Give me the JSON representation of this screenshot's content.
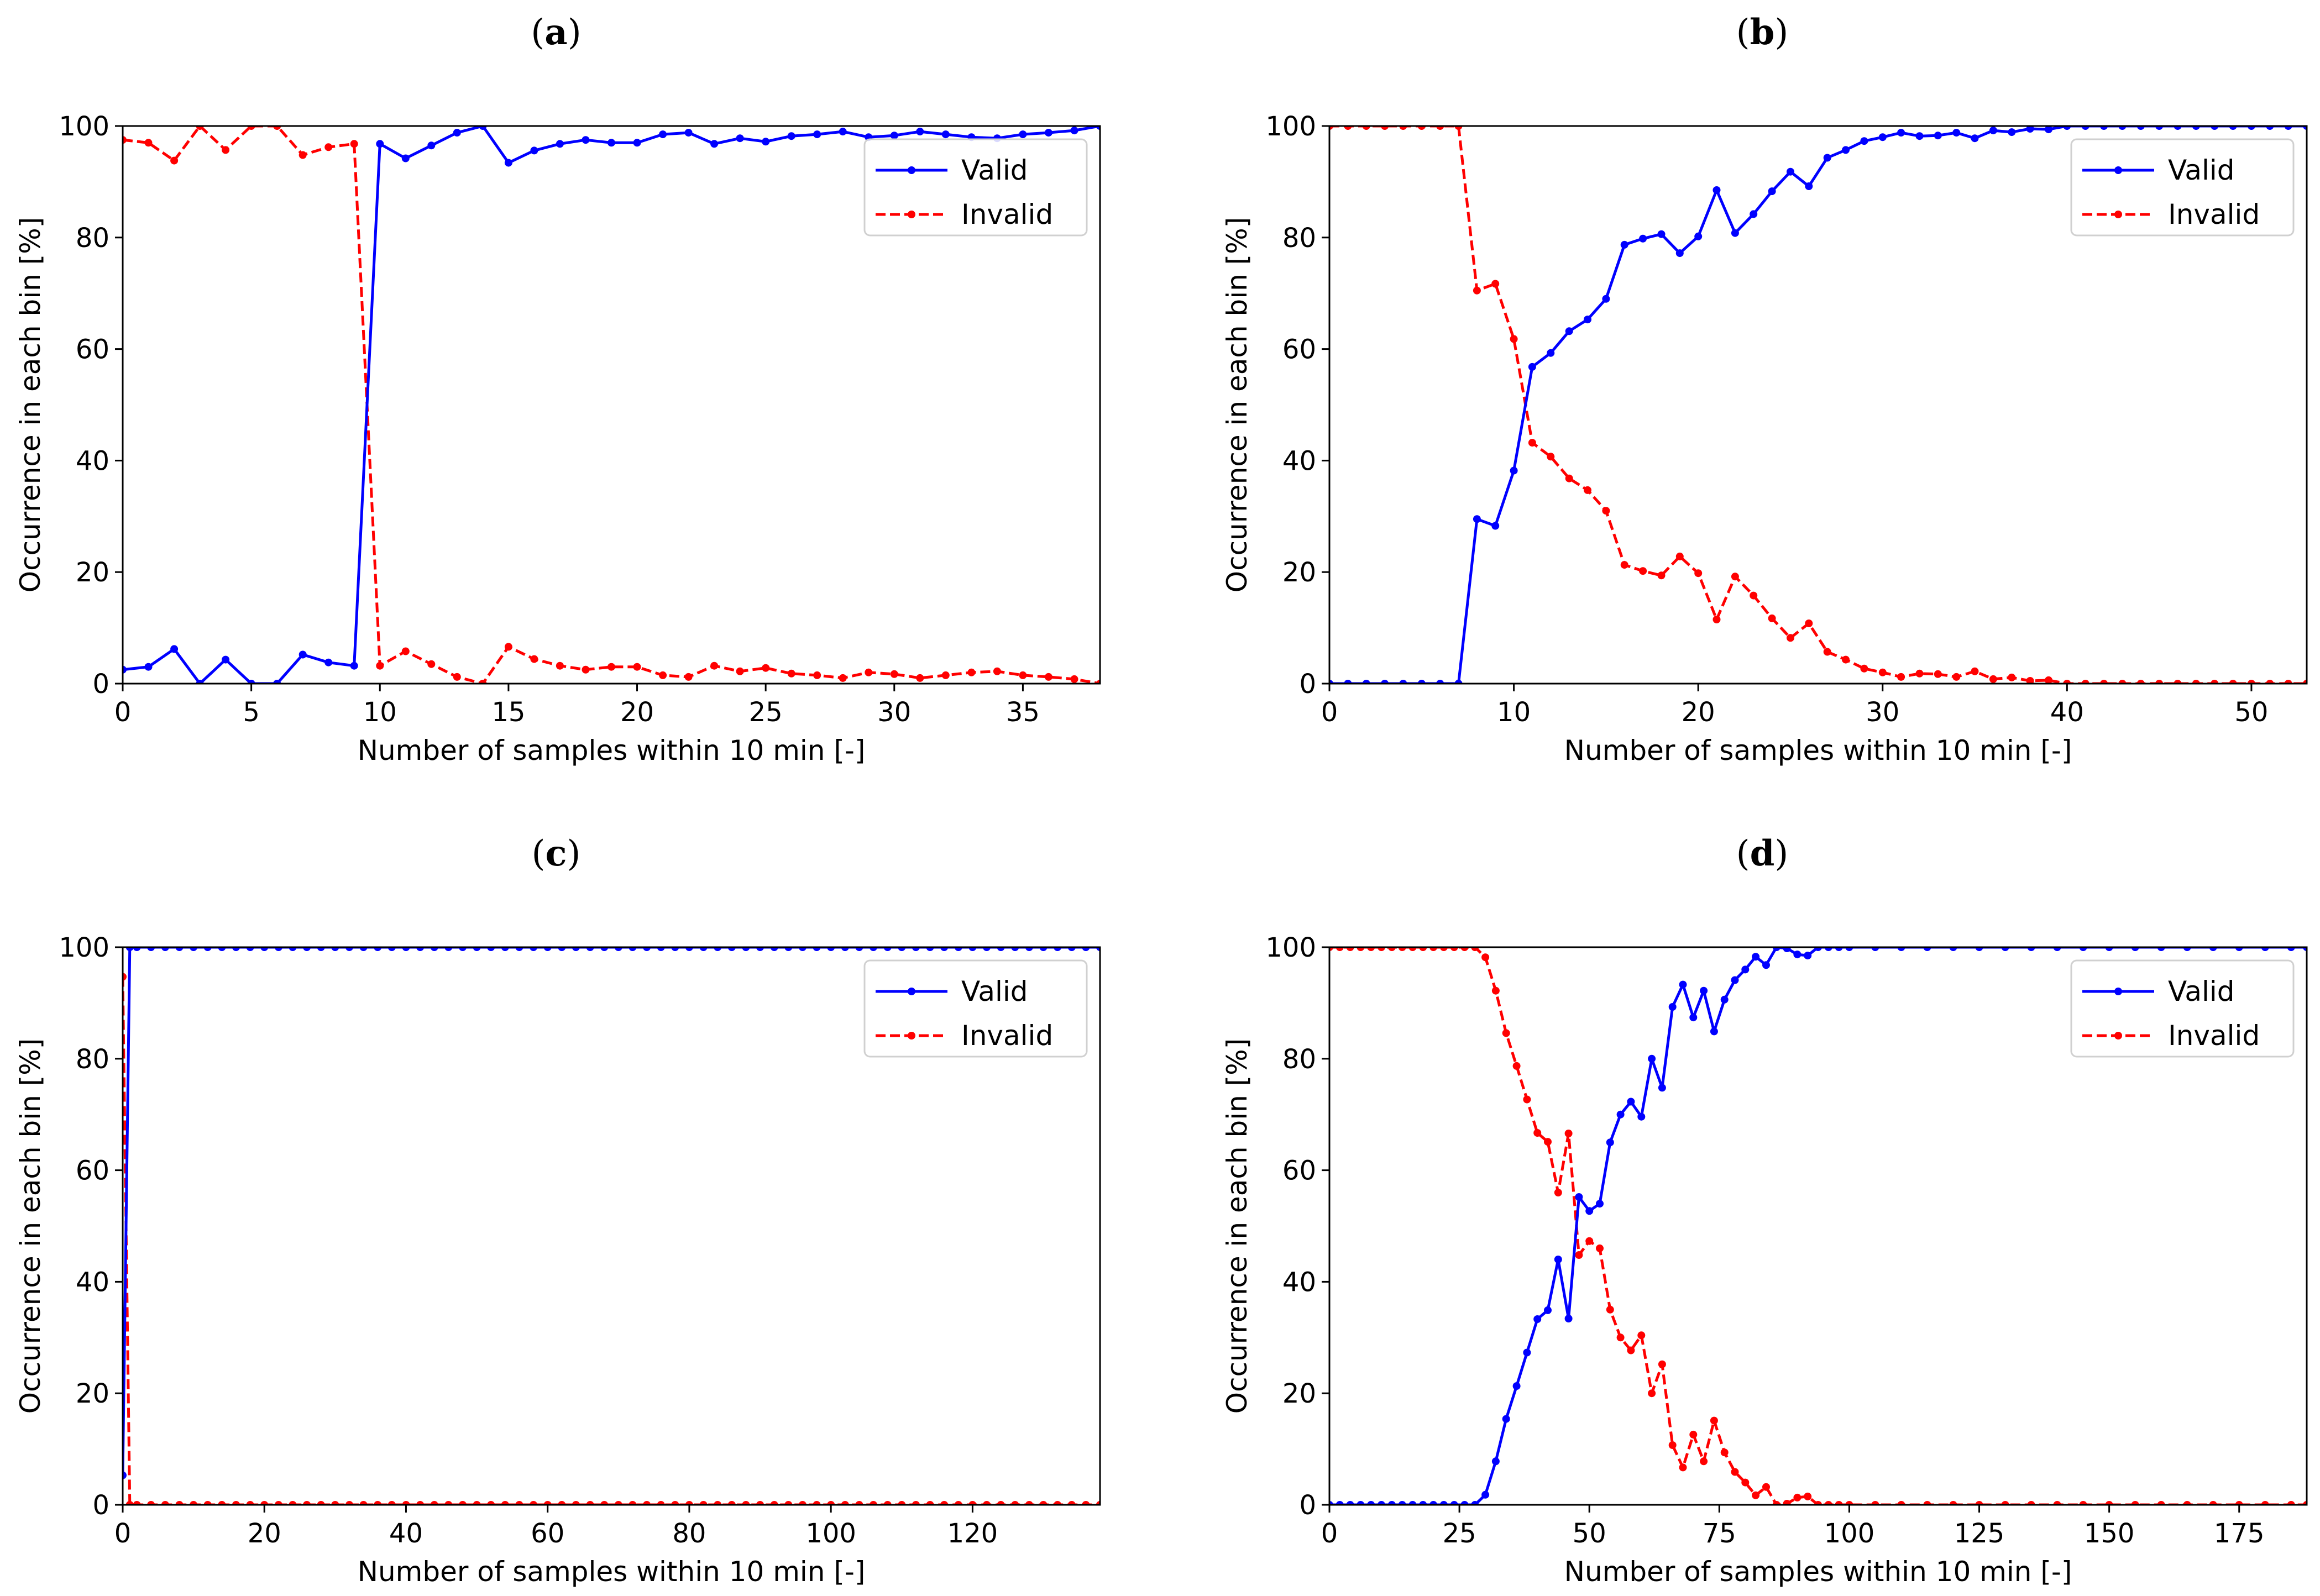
{
  "panels": [
    {
      "label": "a",
      "label_prefix": "(",
      "label_suffix": ")"
    },
    {
      "label": "b",
      "label_prefix": "(",
      "label_suffix": ")"
    },
    {
      "label": "c",
      "label_prefix": "(",
      "label_suffix": ")"
    },
    {
      "label": "d",
      "label_prefix": "(",
      "label_suffix": ")"
    }
  ],
  "chart_data": [
    {
      "type": "line",
      "panel": "a",
      "xlabel": "Number of samples within 10 min [-]",
      "ylabel": "Occurrence in each bin [%]",
      "xlim": [
        0,
        38
      ],
      "ylim": [
        0,
        100
      ],
      "xticks": [
        0,
        5,
        10,
        15,
        20,
        25,
        30,
        35
      ],
      "yticks": [
        0,
        20,
        40,
        60,
        80,
        100
      ],
      "legend": {
        "position": "top-right",
        "entries": [
          "Valid",
          "Invalid"
        ]
      },
      "x": [
        0,
        1,
        2,
        3,
        4,
        5,
        6,
        7,
        8,
        9,
        10,
        11,
        12,
        13,
        14,
        15,
        16,
        17,
        18,
        19,
        20,
        21,
        22,
        23,
        24,
        25,
        26,
        27,
        28,
        29,
        30,
        31,
        32,
        33,
        34,
        35,
        36,
        37,
        38
      ],
      "series": [
        {
          "name": "Valid",
          "color": "#0000ff",
          "style": "solid",
          "values": [
            2.5,
            3,
            6.2,
            0,
            4.3,
            0,
            0,
            5.2,
            3.8,
            3.2,
            96.8,
            94.2,
            96.5,
            98.8,
            100,
            93.4,
            95.6,
            96.8,
            97.5,
            97.0,
            97.0,
            98.5,
            98.8,
            96.8,
            97.8,
            97.2,
            98.2,
            98.5,
            99.0,
            98.0,
            98.3,
            99.0,
            98.5,
            98.0,
            97.8,
            98.5,
            98.8,
            99.2,
            100
          ]
        },
        {
          "name": "Invalid",
          "color": "#ff0000",
          "style": "dashed",
          "values": [
            97.5,
            97,
            93.8,
            100,
            95.7,
            100,
            100,
            94.8,
            96.2,
            96.8,
            3.2,
            5.8,
            3.5,
            1.2,
            0,
            6.6,
            4.4,
            3.2,
            2.5,
            3.0,
            3.0,
            1.5,
            1.2,
            3.2,
            2.2,
            2.8,
            1.8,
            1.5,
            1.0,
            2.0,
            1.7,
            1.0,
            1.5,
            2.0,
            2.2,
            1.5,
            1.2,
            0.8,
            0
          ]
        }
      ]
    },
    {
      "type": "line",
      "panel": "b",
      "xlabel": "Number of samples within 10 min [-]",
      "ylabel": "Occurrence in each bin [%]",
      "xlim": [
        0,
        53
      ],
      "ylim": [
        0,
        100
      ],
      "xticks": [
        0,
        10,
        20,
        30,
        40,
        50
      ],
      "yticks": [
        0,
        20,
        40,
        60,
        80,
        100
      ],
      "legend": {
        "position": "top-right",
        "entries": [
          "Valid",
          "Invalid"
        ]
      },
      "x": [
        0,
        1,
        2,
        3,
        4,
        5,
        6,
        7,
        8,
        9,
        10,
        11,
        12,
        13,
        14,
        15,
        16,
        17,
        18,
        19,
        20,
        21,
        22,
        23,
        24,
        25,
        26,
        27,
        28,
        29,
        30,
        31,
        32,
        33,
        34,
        35,
        36,
        37,
        38,
        39,
        40,
        41,
        42,
        43,
        44,
        45,
        46,
        47,
        48,
        49,
        50,
        51,
        52,
        53
      ],
      "series": [
        {
          "name": "Valid",
          "color": "#0000ff",
          "style": "solid",
          "values": [
            0,
            0,
            0,
            0,
            0,
            0,
            0,
            0,
            29.5,
            28.3,
            38.2,
            56.8,
            59.3,
            63.2,
            65.3,
            69.0,
            78.7,
            79.8,
            80.6,
            77.2,
            80.2,
            88.5,
            80.8,
            84.2,
            88.3,
            91.8,
            89.2,
            94.3,
            95.7,
            97.3,
            98.0,
            98.8,
            98.2,
            98.3,
            98.8,
            97.8,
            99.2,
            98.9,
            99.5,
            99.4,
            100,
            100,
            100,
            100,
            100,
            100,
            100,
            100,
            100,
            100,
            100,
            100,
            100,
            100
          ]
        },
        {
          "name": "Invalid",
          "color": "#ff0000",
          "style": "dashed",
          "values": [
            100,
            100,
            100,
            100,
            100,
            100,
            100,
            100,
            70.5,
            71.7,
            61.8,
            43.2,
            40.7,
            36.8,
            34.7,
            31.0,
            21.3,
            20.2,
            19.4,
            22.8,
            19.8,
            11.5,
            19.2,
            15.8,
            11.7,
            8.2,
            10.8,
            5.7,
            4.3,
            2.7,
            2.0,
            1.2,
            1.8,
            1.7,
            1.2,
            2.2,
            0.8,
            1.1,
            0.5,
            0.6,
            0,
            0,
            0,
            0,
            0,
            0,
            0,
            0,
            0,
            0,
            0,
            0,
            0,
            0
          ]
        }
      ]
    },
    {
      "type": "line",
      "panel": "c",
      "xlabel": "Number of samples within 10 min [-]",
      "ylabel": "Occurrence in each bin [%]",
      "xlim": [
        0,
        138
      ],
      "ylim": [
        0,
        100
      ],
      "xticks": [
        0,
        20,
        40,
        60,
        80,
        100,
        120
      ],
      "yticks": [
        0,
        20,
        40,
        60,
        80,
        100
      ],
      "legend": {
        "position": "top-right",
        "entries": [
          "Valid",
          "Invalid"
        ]
      },
      "x": [
        0,
        1,
        2,
        4,
        6,
        8,
        10,
        12,
        14,
        16,
        18,
        20,
        22,
        24,
        26,
        28,
        30,
        32,
        34,
        36,
        38,
        40,
        42,
        44,
        46,
        48,
        50,
        52,
        54,
        56,
        58,
        60,
        62,
        64,
        66,
        68,
        70,
        72,
        74,
        76,
        78,
        80,
        82,
        84,
        86,
        88,
        90,
        92,
        94,
        96,
        98,
        100,
        102,
        104,
        106,
        108,
        110,
        112,
        114,
        116,
        118,
        120,
        122,
        124,
        126,
        128,
        130,
        132,
        134,
        136,
        138
      ],
      "series": [
        {
          "name": "Valid",
          "color": "#0000ff",
          "style": "solid",
          "values": [
            5.3,
            100,
            100,
            100,
            100,
            100,
            100,
            100,
            100,
            100,
            100,
            100,
            100,
            100,
            100,
            100,
            100,
            100,
            100,
            100,
            100,
            100,
            100,
            100,
            100,
            100,
            100,
            100,
            100,
            100,
            100,
            100,
            100,
            100,
            100,
            100,
            100,
            100,
            100,
            100,
            100,
            100,
            100,
            100,
            100,
            100,
            100,
            100,
            100,
            100,
            100,
            100,
            100,
            100,
            100,
            100,
            100,
            100,
            100,
            100,
            100,
            100,
            100,
            100,
            100,
            100,
            100,
            100,
            100,
            100,
            100
          ]
        },
        {
          "name": "Invalid",
          "color": "#ff0000",
          "style": "dashed",
          "values": [
            94.7,
            0,
            0,
            0,
            0,
            0,
            0,
            0,
            0,
            0,
            0,
            0,
            0,
            0,
            0,
            0,
            0,
            0,
            0,
            0,
            0,
            0,
            0,
            0,
            0,
            0,
            0,
            0,
            0,
            0,
            0,
            0,
            0,
            0,
            0,
            0,
            0,
            0,
            0,
            0,
            0,
            0,
            0,
            0,
            0,
            0,
            0,
            0,
            0,
            0,
            0,
            0,
            0,
            0,
            0,
            0,
            0,
            0,
            0,
            0,
            0,
            0,
            0,
            0,
            0,
            0,
            0,
            0,
            0,
            0,
            0
          ]
        }
      ]
    },
    {
      "type": "line",
      "panel": "d",
      "xlabel": "Number of samples within 10 min [-]",
      "ylabel": "Occurrence in each bin [%]",
      "xlim": [
        0,
        188
      ],
      "ylim": [
        0,
        100
      ],
      "xticks": [
        0,
        25,
        50,
        75,
        100,
        125,
        150,
        175
      ],
      "yticks": [
        0,
        20,
        40,
        60,
        80,
        100
      ],
      "legend": {
        "position": "top-right",
        "entries": [
          "Valid",
          "Invalid"
        ]
      },
      "x": [
        0,
        2,
        4,
        6,
        8,
        10,
        12,
        14,
        16,
        18,
        20,
        22,
        24,
        26,
        28,
        30,
        32,
        34,
        36,
        38,
        40,
        42,
        44,
        46,
        48,
        50,
        52,
        54,
        56,
        58,
        60,
        62,
        64,
        66,
        68,
        70,
        72,
        74,
        76,
        78,
        80,
        82,
        84,
        86,
        88,
        90,
        92,
        94,
        96,
        98,
        100,
        105,
        110,
        115,
        120,
        125,
        130,
        135,
        140,
        145,
        150,
        155,
        160,
        165,
        170,
        175,
        180,
        185,
        188
      ],
      "series": [
        {
          "name": "Valid",
          "color": "#0000ff",
          "style": "solid",
          "values": [
            0,
            0,
            0,
            0,
            0,
            0,
            0,
            0,
            0,
            0,
            0,
            0,
            0,
            0,
            0,
            1.8,
            7.8,
            15.4,
            21.3,
            27.3,
            33.3,
            34.9,
            44.0,
            33.4,
            55.2,
            52.7,
            54.0,
            65.0,
            70.0,
            72.3,
            69.6,
            80.0,
            74.8,
            89.3,
            93.3,
            87.4,
            92.2,
            84.9,
            90.6,
            94.1,
            96.0,
            98.3,
            96.8,
            100,
            99.8,
            98.7,
            98.5,
            100,
            100,
            100,
            100,
            100,
            100,
            100,
            100,
            100,
            100,
            100,
            100,
            100,
            100,
            100,
            100,
            100,
            100,
            100,
            100,
            100,
            100
          ]
        },
        {
          "name": "Invalid",
          "color": "#ff0000",
          "style": "dashed",
          "values": [
            100,
            100,
            100,
            100,
            100,
            100,
            100,
            100,
            100,
            100,
            100,
            100,
            100,
            100,
            100,
            98.2,
            92.2,
            84.6,
            78.7,
            72.7,
            66.7,
            65.1,
            56.0,
            66.6,
            44.8,
            47.3,
            46.0,
            35.0,
            30.0,
            27.7,
            30.4,
            20.0,
            25.2,
            10.7,
            6.7,
            12.6,
            7.8,
            15.1,
            9.4,
            5.9,
            4.0,
            1.7,
            3.2,
            0,
            0.2,
            1.3,
            1.5,
            0,
            0,
            0,
            0,
            0,
            0,
            0,
            0,
            0,
            0,
            0,
            0,
            0,
            0,
            0,
            0,
            0,
            0,
            0,
            0,
            0,
            0
          ]
        }
      ]
    }
  ]
}
